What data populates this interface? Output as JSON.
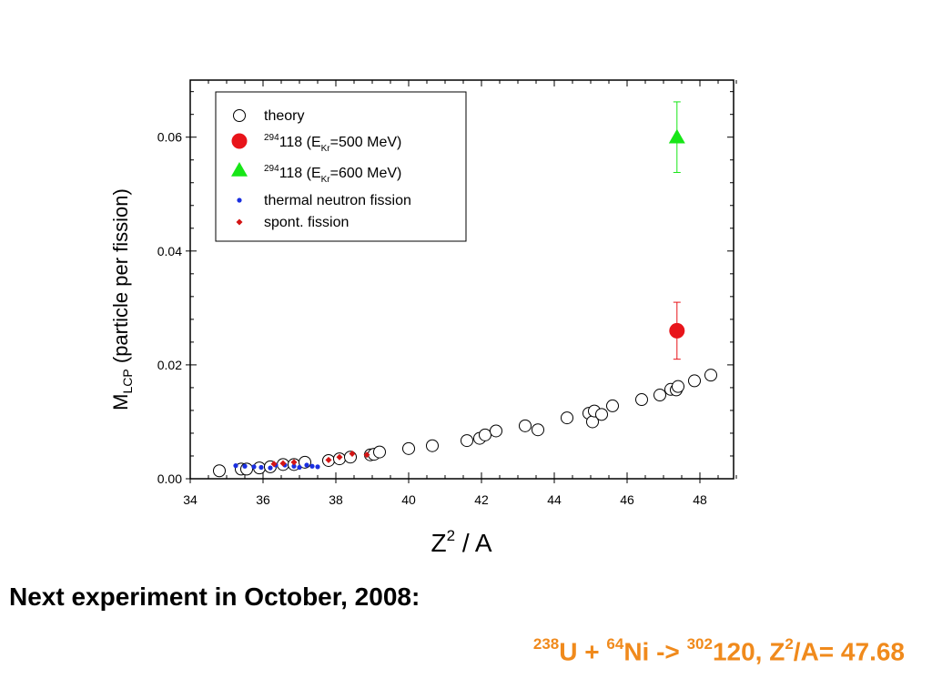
{
  "colors": {
    "theory": "#000000",
    "e500": "#e8141a",
    "e600": "#17e617",
    "thermal": "#1a2fe0",
    "spont": "#d31414",
    "orange": "#f08a1c"
  },
  "chart_data": {
    "type": "scatter",
    "xlim": [
      34,
      49
    ],
    "ylim": [
      0,
      0.07
    ],
    "x_ticks": [
      34,
      36,
      38,
      40,
      42,
      44,
      46,
      48
    ],
    "x_tick_labels": [
      "34",
      "36",
      "38",
      "40",
      "42",
      "44",
      "46",
      "48"
    ],
    "y_ticks": [
      0,
      0.02,
      0.04,
      0.06
    ],
    "y_tick_labels": [
      "0.00",
      "0.02",
      "0.04",
      "0.06"
    ],
    "xlabel": {
      "main": "Z",
      "sup": "2",
      "rest": " / A"
    },
    "ylabel": {
      "main": "M",
      "sub": "LCP",
      "rest": " (particle per fission)"
    },
    "legend": {
      "placement": "top-left",
      "entries": [
        {
          "marker": "open-circle",
          "color_key": "theory",
          "prefix_sup": "",
          "text": "theory",
          "sub": "",
          "suffix": ""
        },
        {
          "marker": "filled-circle",
          "color_key": "e500",
          "prefix_sup": "294",
          "text": "118 (E",
          "sub": "Kr",
          "suffix": "=500 MeV)"
        },
        {
          "marker": "triangle",
          "color_key": "e600",
          "prefix_sup": "294",
          "text": "118 (E",
          "sub": "Kr",
          "suffix": "=600 MeV)"
        },
        {
          "marker": "small-dot",
          "color_key": "thermal",
          "prefix_sup": "",
          "text": "thermal neutron fission",
          "sub": "",
          "suffix": ""
        },
        {
          "marker": "small-diamond",
          "color_key": "spont",
          "prefix_sup": "",
          "text": "spont. fission",
          "sub": "",
          "suffix": ""
        }
      ]
    },
    "series": [
      {
        "name": "theory",
        "marker": "open-circle",
        "color_key": "theory",
        "points": [
          [
            34.8,
            0.0014
          ],
          [
            35.4,
            0.0017
          ],
          [
            35.55,
            0.0017
          ],
          [
            35.9,
            0.0019
          ],
          [
            36.2,
            0.0021
          ],
          [
            36.55,
            0.0025
          ],
          [
            36.85,
            0.0025
          ],
          [
            37.15,
            0.0029
          ],
          [
            37.8,
            0.0032
          ],
          [
            38.1,
            0.0035
          ],
          [
            38.4,
            0.0038
          ],
          [
            38.95,
            0.0042
          ],
          [
            39.05,
            0.0043
          ],
          [
            39.2,
            0.0047
          ],
          [
            40.0,
            0.0053
          ],
          [
            40.65,
            0.0058
          ],
          [
            41.6,
            0.0067
          ],
          [
            41.95,
            0.0071
          ],
          [
            42.1,
            0.0077
          ],
          [
            42.4,
            0.0084
          ],
          [
            43.2,
            0.0093
          ],
          [
            43.55,
            0.0086
          ],
          [
            44.35,
            0.0107
          ],
          [
            44.95,
            0.0115
          ],
          [
            45.05,
            0.01
          ],
          [
            45.1,
            0.0119
          ],
          [
            45.3,
            0.0113
          ],
          [
            45.6,
            0.0128
          ],
          [
            46.4,
            0.0139
          ],
          [
            46.9,
            0.0147
          ],
          [
            47.2,
            0.0157
          ],
          [
            47.35,
            0.0156
          ],
          [
            47.4,
            0.0162
          ],
          [
            47.85,
            0.0172
          ],
          [
            48.3,
            0.0182
          ]
        ]
      },
      {
        "name": "294118 (EKr=500 MeV)",
        "marker": "filled-circle",
        "color_key": "e500",
        "points": [
          [
            47.37,
            0.026
          ]
        ],
        "errors": [
          0.005
        ]
      },
      {
        "name": "294118 (EKr=600 MeV)",
        "marker": "triangle",
        "color_key": "e600",
        "points": [
          [
            47.37,
            0.06
          ]
        ],
        "errors": [
          0.0062
        ]
      },
      {
        "name": "thermal neutron fission",
        "marker": "small-dot",
        "color_key": "thermal",
        "points": [
          [
            35.25,
            0.0023
          ],
          [
            35.5,
            0.0022
          ],
          [
            35.75,
            0.0021
          ],
          [
            35.95,
            0.002
          ],
          [
            36.2,
            0.0019
          ],
          [
            36.35,
            0.0024
          ],
          [
            36.6,
            0.0024
          ],
          [
            36.85,
            0.0022
          ],
          [
            37.0,
            0.002
          ],
          [
            37.2,
            0.0024
          ],
          [
            37.35,
            0.0022
          ],
          [
            37.5,
            0.0021
          ]
        ]
      },
      {
        "name": "spont. fission",
        "marker": "small-diamond",
        "color_key": "spont",
        "points": [
          [
            36.3,
            0.0026
          ],
          [
            36.55,
            0.0027
          ],
          [
            36.85,
            0.0029
          ],
          [
            37.8,
            0.0033
          ],
          [
            38.1,
            0.0038
          ],
          [
            38.45,
            0.0044
          ],
          [
            38.85,
            0.0042
          ]
        ]
      }
    ]
  },
  "headline": "Next experiment in October, 2008:",
  "equation": {
    "u_mass": "238",
    "u_sym": "U + ",
    "ni_mass": "64",
    "ni_sym": "Ni -> ",
    "prod_mass": "302",
    "prod_text": "120, Z",
    "z_pow": "2",
    "tail": "/A= 47.68"
  }
}
